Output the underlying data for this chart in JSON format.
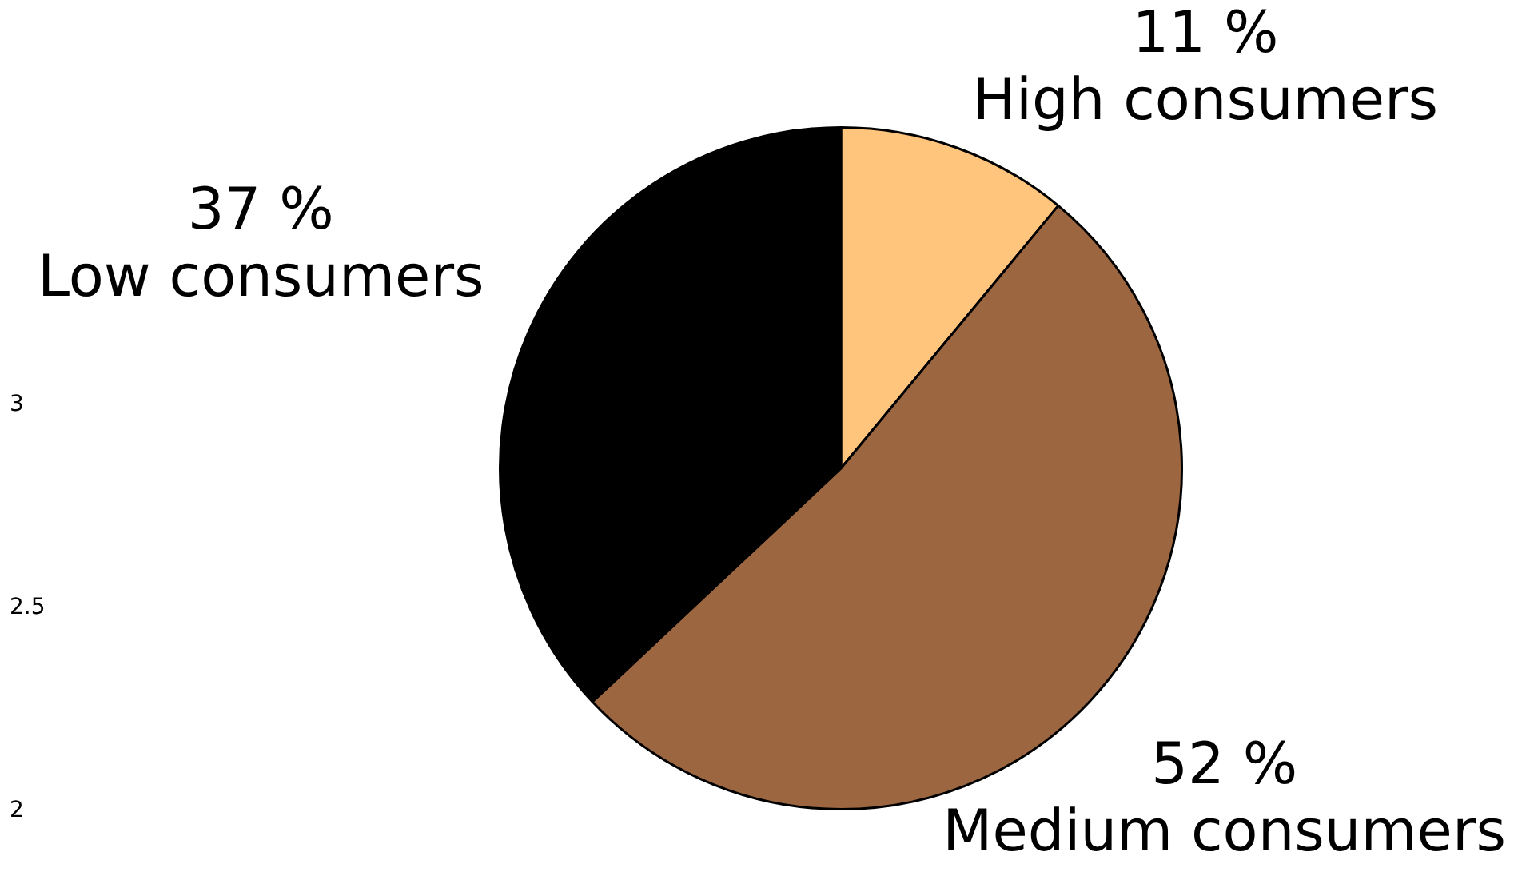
{
  "chart_data": {
    "type": "pie",
    "categories": [
      "High consumers",
      "Medium consumers",
      "Low consumers"
    ],
    "values": [
      11,
      52,
      37
    ],
    "colors": [
      "#ffc57d",
      "#9c6640",
      "#000000"
    ],
    "value_labels": [
      "11 %",
      "52 %",
      "37 %"
    ],
    "annotations": [
      "3",
      "2.5",
      "2"
    ],
    "legend": false
  }
}
